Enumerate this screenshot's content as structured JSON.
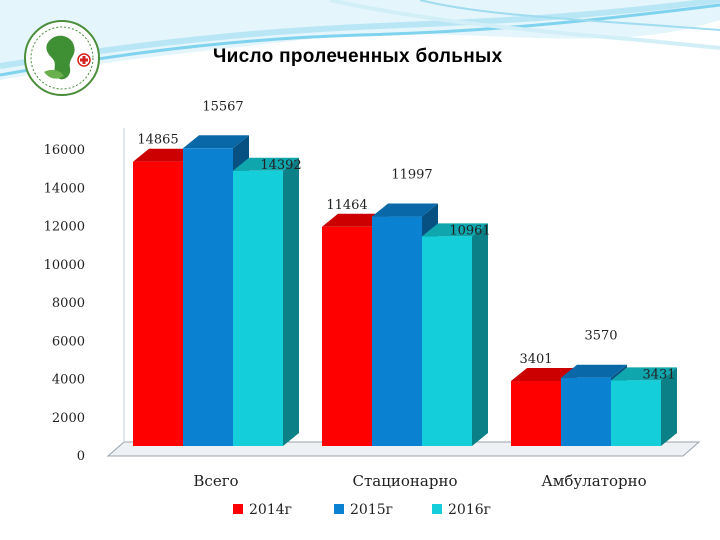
{
  "header": {
    "title": "Число пролеченных больных"
  },
  "colors": {
    "2014г": "#ff0000",
    "2015г": "#0b82d1",
    "2016г": "#14cfd9",
    "wave_accent": "#5fc6e6"
  },
  "chart_data": {
    "type": "bar",
    "title": "Число пролеченных больных",
    "categories": [
      "Всего",
      "Стационарно",
      "Амбулаторно"
    ],
    "series": [
      {
        "name": "2014г",
        "values": [
          14865,
          11464,
          3401
        ]
      },
      {
        "name": "2015г",
        "values": [
          15567,
          11997,
          3570
        ]
      },
      {
        "name": "2016г",
        "values": [
          14392,
          10961,
          3431
        ]
      }
    ],
    "yticks": [
      "0",
      "2000",
      "4000",
      "6000",
      "8000",
      "10000",
      "12000",
      "14000",
      "16000"
    ],
    "ylim": [
      0,
      16000
    ],
    "xlabel": "",
    "ylabel": "",
    "legend_position": "bottom",
    "style": "3d-column",
    "grid": false
  }
}
